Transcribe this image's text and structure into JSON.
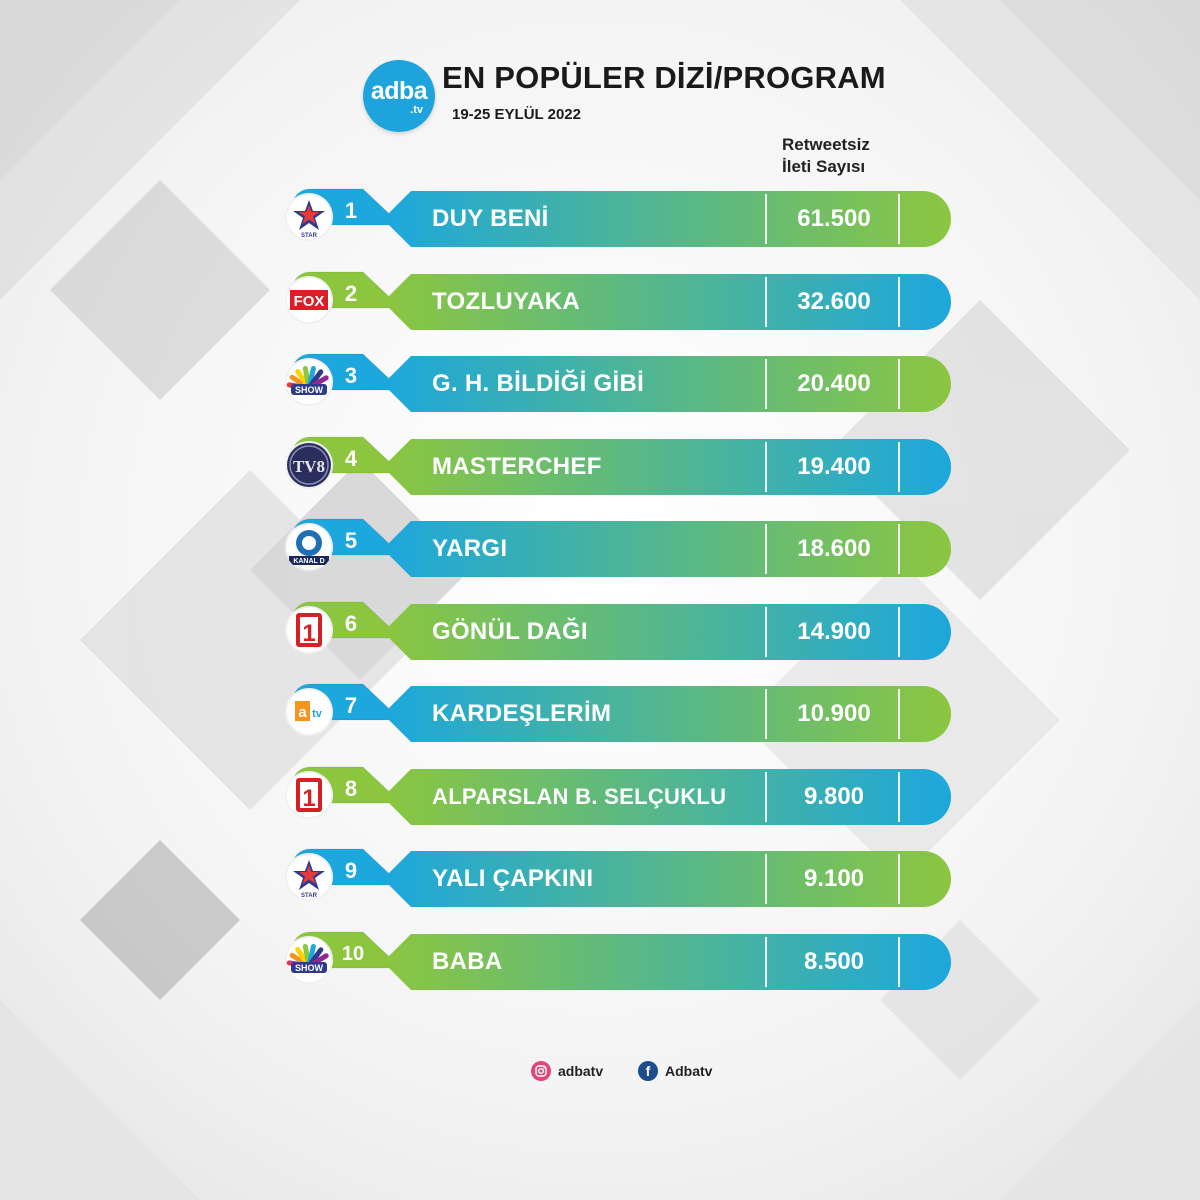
{
  "header": {
    "brand": "adba",
    "brand_sub": ".tv",
    "title": "EN POPÜLER DİZİ/PROGRAM",
    "date": "19-25 EYLÜL 2022",
    "column_header": [
      "Retweetsiz",
      "İleti Sayısı"
    ]
  },
  "colors": {
    "blue": "#1ca7dd",
    "green": "#8cc63f",
    "teal": "#4cb6a2"
  },
  "rows": [
    {
      "rank": "1",
      "channel": "star-icon",
      "name": "DUY BENİ",
      "count": "61.500",
      "style": "blue-green"
    },
    {
      "rank": "2",
      "channel": "fox-icon",
      "name": "TOZLUYAKA",
      "count": "32.600",
      "style": "green-blue"
    },
    {
      "rank": "3",
      "channel": "show-icon",
      "name": "G. H. BİLDİĞİ GİBİ",
      "count": "20.400",
      "style": "blue-green"
    },
    {
      "rank": "4",
      "channel": "tv8-icon",
      "name": "MASTERCHEF",
      "count": "19.400",
      "style": "green-blue"
    },
    {
      "rank": "5",
      "channel": "kanald-icon",
      "name": "YARGI",
      "count": "18.600",
      "style": "blue-green"
    },
    {
      "rank": "6",
      "channel": "trt1-icon",
      "name": "GÖNÜL DAĞI",
      "count": "14.900",
      "style": "green-blue"
    },
    {
      "rank": "7",
      "channel": "atv-icon",
      "name": "KARDEŞLERİM",
      "count": "10.900",
      "style": "blue-green"
    },
    {
      "rank": "8",
      "channel": "trt1-icon",
      "name": "ALPARSLAN B. SELÇUKLU",
      "count": "9.800",
      "style": "green-blue"
    },
    {
      "rank": "9",
      "channel": "star-icon",
      "name": "YALI ÇAPKINI",
      "count": "9.100",
      "style": "blue-green"
    },
    {
      "rank": "10",
      "channel": "show-icon",
      "name": "BABA",
      "count": "8.500",
      "style": "green-blue"
    }
  ],
  "channel_labels": {
    "star": "STAR",
    "fox": "FOX",
    "show": "SHOW",
    "tv8": "TV8",
    "kanald": "KANAL D",
    "trt1": "1",
    "atv": "atv"
  },
  "footer": {
    "instagram": "adbatv",
    "facebook": "Adbatv",
    "facebook_glyph": "f"
  }
}
